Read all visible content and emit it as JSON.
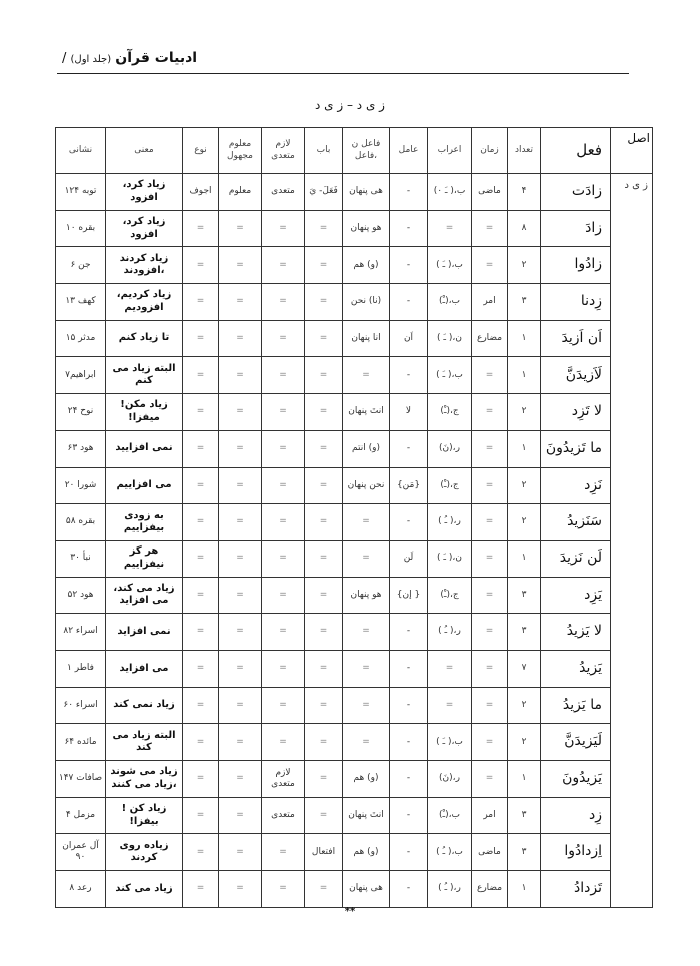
{
  "running_head": {
    "book": "ادبیات قرآن",
    "volume": "(جلد اول)",
    "page_sep": "/"
  },
  "table_title": "ز ی د – ز ی د",
  "headers": {
    "root": "اصل",
    "verb": "فعل",
    "count": "تعداد",
    "tense": "زمان",
    "irab": "اعراب",
    "amil": "عامل",
    "fael": "فاعل ن ،فاعل",
    "bab": "باب",
    "lazem": "لازم متعدی",
    "malum": "معلوم مجهول",
    "type": "نوع",
    "meaning": "معنی",
    "ref": "نشانی"
  },
  "root": "ز ی د",
  "rows": [
    {
      "verb": "زادَت",
      "count": "۴",
      "tense": "ماضی",
      "irab": "ب،( ـَ ۰)",
      "amil": "-",
      "fael": "هی پنهان",
      "bab": "فَعَلَ- يَ",
      "lazem": "متعدی",
      "malum": "معلوم",
      "type": "اجوف",
      "meaning": "زیاد کرد، افزود",
      "ref": "توبه ۱۲۴"
    },
    {
      "verb": "زادَ",
      "count": "۸",
      "tense": "=",
      "irab": "=",
      "amil": "-",
      "fael": "هو پنهان",
      "bab": "=",
      "lazem": "=",
      "malum": "=",
      "type": "=",
      "meaning": "زیاد کرد، افزود",
      "ref": "بقره ۱۰"
    },
    {
      "verb": "زادُوا",
      "count": "۲",
      "tense": "=",
      "irab": "ب،( ـَ )",
      "amil": "-",
      "fael": "(و) هم",
      "bab": "=",
      "lazem": "=",
      "malum": "=",
      "type": "=",
      "meaning": "زیاد کردند ،افزودند",
      "ref": "جن ۶"
    },
    {
      "verb": "زِدنا",
      "count": "۳",
      "tense": "امر",
      "irab": "ب،(ـْ)",
      "amil": "-",
      "fael": "(نا) نحن",
      "bab": "=",
      "lazem": "=",
      "malum": "=",
      "type": "=",
      "meaning": "زیاد کردیم، افزودیم",
      "ref": "کهف ۱۳"
    },
    {
      "verb": "اَن اَزیدَ",
      "count": "۱",
      "tense": "مضارع",
      "irab": "ن،( ـَ )",
      "amil": "اَن",
      "fael": "انا پنهان",
      "bab": "=",
      "lazem": "=",
      "malum": "=",
      "type": "=",
      "meaning": "تا زیاد کنم",
      "ref": "مدثر ۱۵"
    },
    {
      "verb": "لَاَزیدَنَّ",
      "count": "۱",
      "tense": "=",
      "irab": "ب،( ـَ )",
      "amil": "-",
      "fael": "=",
      "bab": "=",
      "lazem": "=",
      "malum": "=",
      "type": "=",
      "meaning": "البته زیاد می کنم",
      "ref": "ابراهیم۷"
    },
    {
      "verb": "لا تَزِد",
      "count": "۲",
      "tense": "=",
      "irab": "ج،(ـْ)",
      "amil": "لا",
      "fael": "انتَ پنهان",
      "bab": "=",
      "lazem": "=",
      "malum": "=",
      "type": "=",
      "meaning": "زیاد مکن! میفزا!",
      "ref": "نوح ۲۴"
    },
    {
      "verb": "ما تَزیدُونَ",
      "count": "۱",
      "tense": "=",
      "irab": "ر،(نَ)",
      "amil": "-",
      "fael": "(و) انتم",
      "bab": "=",
      "lazem": "=",
      "malum": "=",
      "type": "=",
      "meaning": "نمی افزایید",
      "ref": "هود ۶۳"
    },
    {
      "verb": "نَزِد",
      "count": "۲",
      "tense": "=",
      "irab": "ج،(ـْ)",
      "amil": "{مَن}",
      "fael": "نحن پنهان",
      "bab": "=",
      "lazem": "=",
      "malum": "=",
      "type": "=",
      "meaning": "می افزاییم",
      "ref": "شورا ۲۰"
    },
    {
      "verb": "سَنَزیدُ",
      "count": "۲",
      "tense": "=",
      "irab": "ر،( ـُ )",
      "amil": "-",
      "fael": "=",
      "bab": "=",
      "lazem": "=",
      "malum": "=",
      "type": "=",
      "meaning": "به زودی بیفزاییم",
      "ref": "بقره ۵۸"
    },
    {
      "verb": "لَن نَزیدَ",
      "count": "۱",
      "tense": "=",
      "irab": "ن،( ـَ )",
      "amil": "لَن",
      "fael": "=",
      "bab": "=",
      "lazem": "=",
      "malum": "=",
      "type": "=",
      "meaning": "هر گز نیفزاییم",
      "ref": "نبأ ۳۰"
    },
    {
      "verb": "یَزِد",
      "count": "۳",
      "tense": "=",
      "irab": "ج،(ـْ)",
      "amil": "{ إن}",
      "fael": "هو پنهان",
      "bab": "=",
      "lazem": "=",
      "malum": "=",
      "type": "=",
      "meaning": "زیاد می کند، می افزاید",
      "ref": "هود ۵۲"
    },
    {
      "verb": "لا یَزیدُ",
      "count": "۳",
      "tense": "=",
      "irab": "ر،( ـُ )",
      "amil": "-",
      "fael": "=",
      "bab": "=",
      "lazem": "=",
      "malum": "=",
      "type": "=",
      "meaning": "نمی افزاید",
      "ref": "اسراء ۸۲"
    },
    {
      "verb": "یَزیدُ",
      "count": "۷",
      "tense": "=",
      "irab": "=",
      "amil": "-",
      "fael": "=",
      "bab": "=",
      "lazem": "=",
      "malum": "=",
      "type": "=",
      "meaning": "می افزاید",
      "ref": "فاطر ۱"
    },
    {
      "verb": "ما یَزیدُ",
      "count": "۲",
      "tense": "=",
      "irab": "=",
      "amil": "-",
      "fael": "=",
      "bab": "=",
      "lazem": "=",
      "malum": "=",
      "type": "=",
      "meaning": "زیاد نمی کند",
      "ref": "اسراء ۶۰"
    },
    {
      "verb": "لَیَزیدَنَّ",
      "count": "۲",
      "tense": "=",
      "irab": "ب،( ـَ )",
      "amil": "-",
      "fael": "=",
      "bab": "=",
      "lazem": "=",
      "malum": "=",
      "type": "=",
      "meaning": "البته زیاد می کند",
      "ref": "مائده ۶۴"
    },
    {
      "verb": "یَزیدُونَ",
      "count": "۱",
      "tense": "=",
      "irab": "ر،(نَ)",
      "amil": "-",
      "fael": "(و) هم",
      "bab": "=",
      "lazem": "لازم متعدی",
      "malum": "=",
      "type": "=",
      "meaning": "زیاد می شوند ،زیاد می کنند",
      "ref": "صافات ۱۴۷"
    },
    {
      "verb": "زِد",
      "count": "۳",
      "tense": "امر",
      "irab": "ب،(ـْ)",
      "amil": "-",
      "fael": "انتَ پنهان",
      "bab": "=",
      "lazem": "متعدی",
      "malum": "=",
      "type": "=",
      "meaning": "زیاد کن !بیفزا!",
      "ref": "مزمل ۴"
    },
    {
      "verb": "اِزدادُوا",
      "count": "۳",
      "tense": "ماضی",
      "irab": "ب،( ـُ )",
      "amil": "-",
      "fael": "(و) هم",
      "bab": "افتعال",
      "lazem": "=",
      "malum": "=",
      "type": "=",
      "meaning": "زیاده روی کردند",
      "ref": "آل عمران ۹۰"
    },
    {
      "verb": "تَزدادُ",
      "count": "۱",
      "tense": "مضارع",
      "irab": "ر،( ـُ )",
      "amil": "-",
      "fael": "هی پنهان",
      "bab": "=",
      "lazem": "=",
      "malum": "=",
      "type": "=",
      "meaning": "زیاد می کند",
      "ref": "رعد ۸"
    }
  ],
  "footer": "**"
}
